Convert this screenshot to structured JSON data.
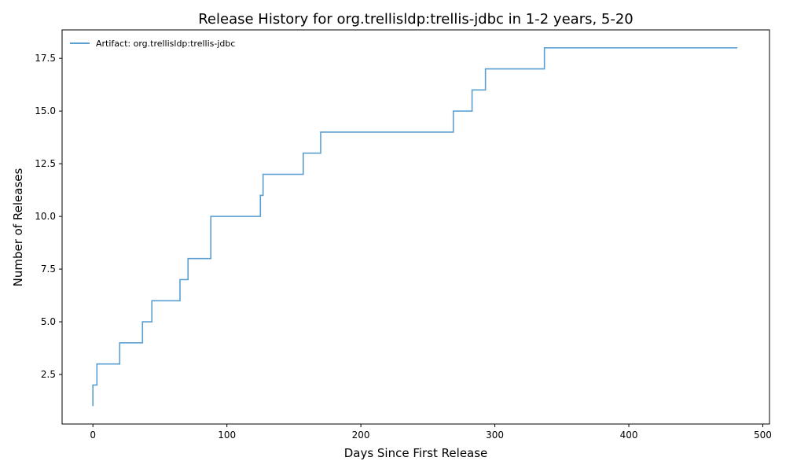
{
  "chart_data": {
    "type": "line",
    "title": "Release History for org.trellisldp:trellis-jdbc in 1-2 years, 5-20",
    "xlabel": "Days Since First Release",
    "ylabel": "Number of Releases",
    "xlim": [
      -23,
      505
    ],
    "ylim": [
      0.15,
      18.85
    ],
    "xticks": [
      0,
      100,
      200,
      300,
      400,
      500
    ],
    "xtick_labels": [
      "0",
      "100",
      "200",
      "300",
      "400",
      "500"
    ],
    "yticks": [
      2.5,
      5.0,
      7.5,
      10.0,
      12.5,
      15.0,
      17.5
    ],
    "ytick_labels": [
      "2.5",
      "5.0",
      "7.5",
      "10.0",
      "12.5",
      "15.0",
      "17.5"
    ],
    "grid": false,
    "legend_position": "top-left",
    "step": "post",
    "series": [
      {
        "name": "Artifact: org.trellisldp:trellis-jdbc",
        "color": "#5b9fd0",
        "x": [
          0,
          0,
          3,
          20,
          37,
          44,
          65,
          71,
          88,
          125,
          127,
          157,
          170,
          269,
          283,
          293,
          337,
          481
        ],
        "y": [
          1,
          2,
          3,
          4,
          5,
          6,
          7,
          8,
          10,
          11,
          12,
          13,
          14,
          15,
          16,
          17,
          18,
          18
        ]
      }
    ]
  }
}
